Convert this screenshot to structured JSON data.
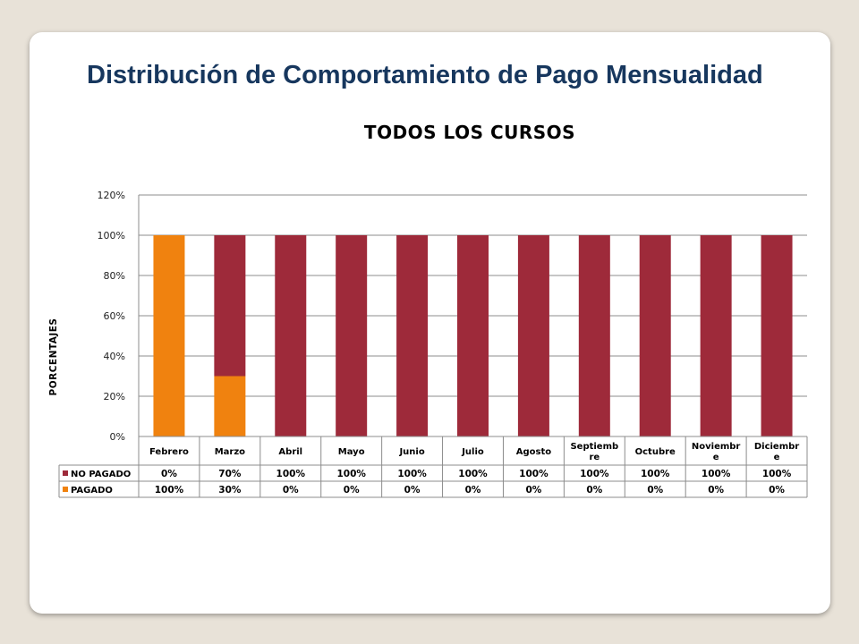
{
  "slide": {
    "title": "Distribución de Comportamiento de Pago Mensualidad"
  },
  "chart_data": {
    "type": "bar",
    "stacked": true,
    "title": "TODOS LOS CURSOS",
    "xlabel": "",
    "ylabel": "PORCENTAJES",
    "ylim": [
      0,
      120
    ],
    "y_ticks": [
      "0%",
      "20%",
      "40%",
      "60%",
      "80%",
      "100%",
      "120%"
    ],
    "grid": true,
    "legend_placement": "data-table",
    "categories": [
      "Febrero",
      "Marzo",
      "Abril",
      "Mayo",
      "Junio",
      "Julio",
      "Agosto",
      "Septiembre",
      "Octubre",
      "Noviembre",
      "Diciembre"
    ],
    "category_labels": [
      [
        "Febrero"
      ],
      [
        "Marzo"
      ],
      [
        "Abril"
      ],
      [
        "Mayo"
      ],
      [
        "Junio"
      ],
      [
        "Julio"
      ],
      [
        "Agosto"
      ],
      [
        "Septiemb",
        "re"
      ],
      [
        "Octubre"
      ],
      [
        "Noviembr",
        "e"
      ],
      [
        "Diciembr",
        "e"
      ]
    ],
    "series": [
      {
        "name": "NO PAGADO",
        "color": "#9e2a3a",
        "values": [
          0,
          70,
          100,
          100,
          100,
          100,
          100,
          100,
          100,
          100,
          100
        ],
        "labels": [
          "0%",
          "70%",
          "100%",
          "100%",
          "100%",
          "100%",
          "100%",
          "100%",
          "100%",
          "100%",
          "100%"
        ]
      },
      {
        "name": "PAGADO",
        "color": "#f0820f",
        "values": [
          100,
          30,
          0,
          0,
          0,
          0,
          0,
          0,
          0,
          0,
          0
        ],
        "labels": [
          "100%",
          "30%",
          "0%",
          "0%",
          "0%",
          "0%",
          "0%",
          "0%",
          "0%",
          "0%",
          "0%"
        ]
      }
    ]
  }
}
